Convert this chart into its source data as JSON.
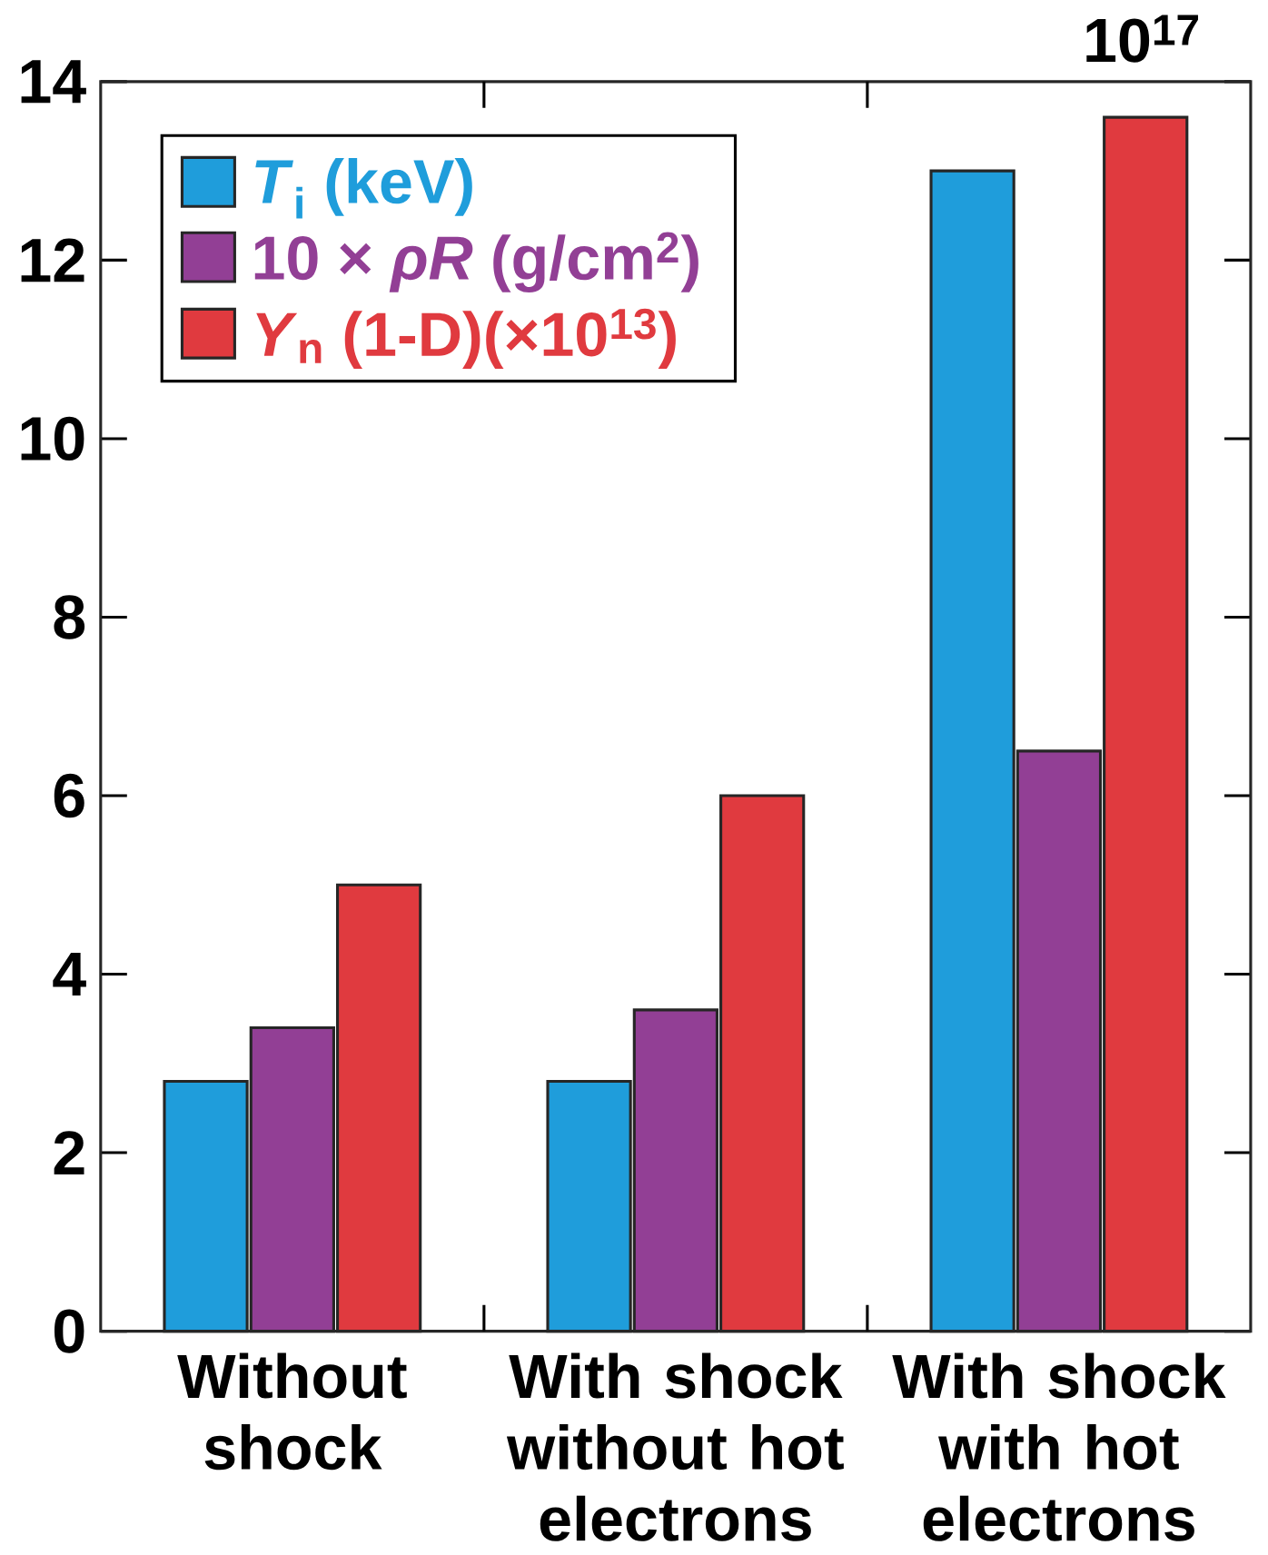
{
  "chart_data": {
    "type": "bar",
    "categories": [
      "Without shock",
      "With shock without hot electrons",
      "With shock with hot electrons"
    ],
    "series": [
      {
        "name": "*T*$_{i}$ (keV)",
        "color": "#1f9ddb",
        "values": [
          2.8,
          2.8,
          13.0
        ]
      },
      {
        "name": "10 × *ρR* (g/cm$^{2}$)",
        "color": "#923f95",
        "values": [
          3.4,
          3.6,
          6.5
        ]
      },
      {
        "name": "*Y*$_{n}$ (1-D)(×10$^{13}$)",
        "color": "#e03a3f",
        "values": [
          5.0,
          6.0,
          13.6
        ]
      }
    ],
    "ylim": [
      0,
      14
    ],
    "yticks": [
      0,
      2,
      4,
      6,
      8,
      10,
      12,
      14
    ],
    "legend": "top left",
    "grid": false,
    "annotations": [
      "10$^{17}$"
    ]
  }
}
